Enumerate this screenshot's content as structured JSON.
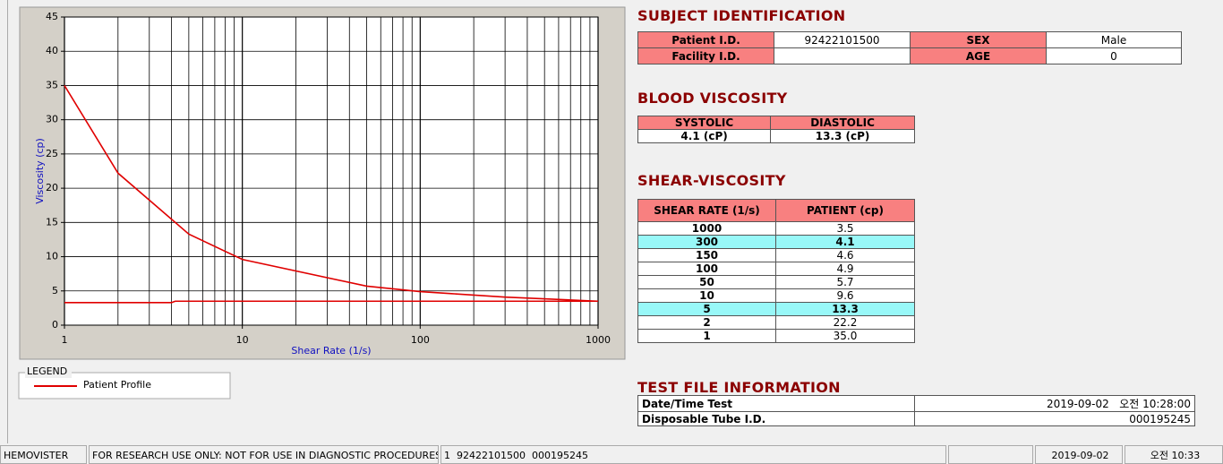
{
  "chart_data": {
    "type": "line",
    "x_label": "Shear Rate (1/s)",
    "y_label": "Viscosity (cp)",
    "xlim": [
      1,
      1000
    ],
    "xticks": [
      1,
      10,
      100,
      1000
    ],
    "xlog": true,
    "ylim": [
      0,
      45
    ],
    "yticks": [
      0,
      5,
      10,
      15,
      20,
      25,
      30,
      35,
      40,
      45
    ],
    "grid": true,
    "legend_title": "LEGEND",
    "series": [
      {
        "name": "Patient Profile",
        "color": "#e00000",
        "x": [
          1,
          2,
          5,
          10,
          50,
          100,
          150,
          300,
          1000
        ],
        "values": [
          35,
          22.2,
          13.3,
          9.6,
          5.7,
          4.9,
          4.6,
          4.1,
          3.5
        ]
      },
      {
        "color": "#e00000",
        "x": [
          1,
          4,
          4.2,
          1000
        ],
        "values": [
          3.3,
          3.3,
          3.5,
          3.5
        ]
      }
    ]
  },
  "subject": {
    "title": "SUBJECT IDENTIFICATION",
    "patient_label": "Patient I.D.",
    "patient_value": "92422101500",
    "sex_label": "SEX",
    "sex_value": "Male",
    "facility_label": "Facility I.D.",
    "age_label": "AGE",
    "age_value": "0"
  },
  "blood": {
    "title": "BLOOD VISCOSITY",
    "headers": [
      "SYSTOLIC",
      "DIASTOLIC"
    ],
    "values": [
      "4.1 (cP)",
      "13.3 (cP)"
    ]
  },
  "shear": {
    "title": "SHEAR-VISCOSITY",
    "headers": [
      "SHEAR RATE (1/s)",
      "PATIENT (cp)"
    ],
    "rows": [
      {
        "cells": [
          "1000",
          "3.5"
        ]
      },
      {
        "cells": [
          "300",
          "4.1"
        ],
        "highlight": true
      },
      {
        "cells": [
          "150",
          "4.6"
        ]
      },
      {
        "cells": [
          "100",
          "4.9"
        ]
      },
      {
        "cells": [
          "50",
          "5.7"
        ]
      },
      {
        "cells": [
          "10",
          "9.6"
        ]
      },
      {
        "cells": [
          "5",
          "13.3"
        ],
        "highlight": true
      },
      {
        "cells": [
          "2",
          "22.2"
        ]
      },
      {
        "cells": [
          "1",
          "35.0"
        ]
      }
    ]
  },
  "test": {
    "title": "TEST FILE INFORMATION",
    "rows": [
      [
        "Date/Time Test",
        "2019-09-02   오전 10:28:00"
      ],
      [
        "Disposable Tube I.D.",
        "000195245"
      ]
    ]
  },
  "status": [
    "HEMOVISTER",
    "FOR RESEARCH USE ONLY: NOT FOR USE IN DIAGNOSTIC PROCEDURES",
    "1  92422101500  000195245",
    "2019-09-02",
    "오전 10:33"
  ]
}
